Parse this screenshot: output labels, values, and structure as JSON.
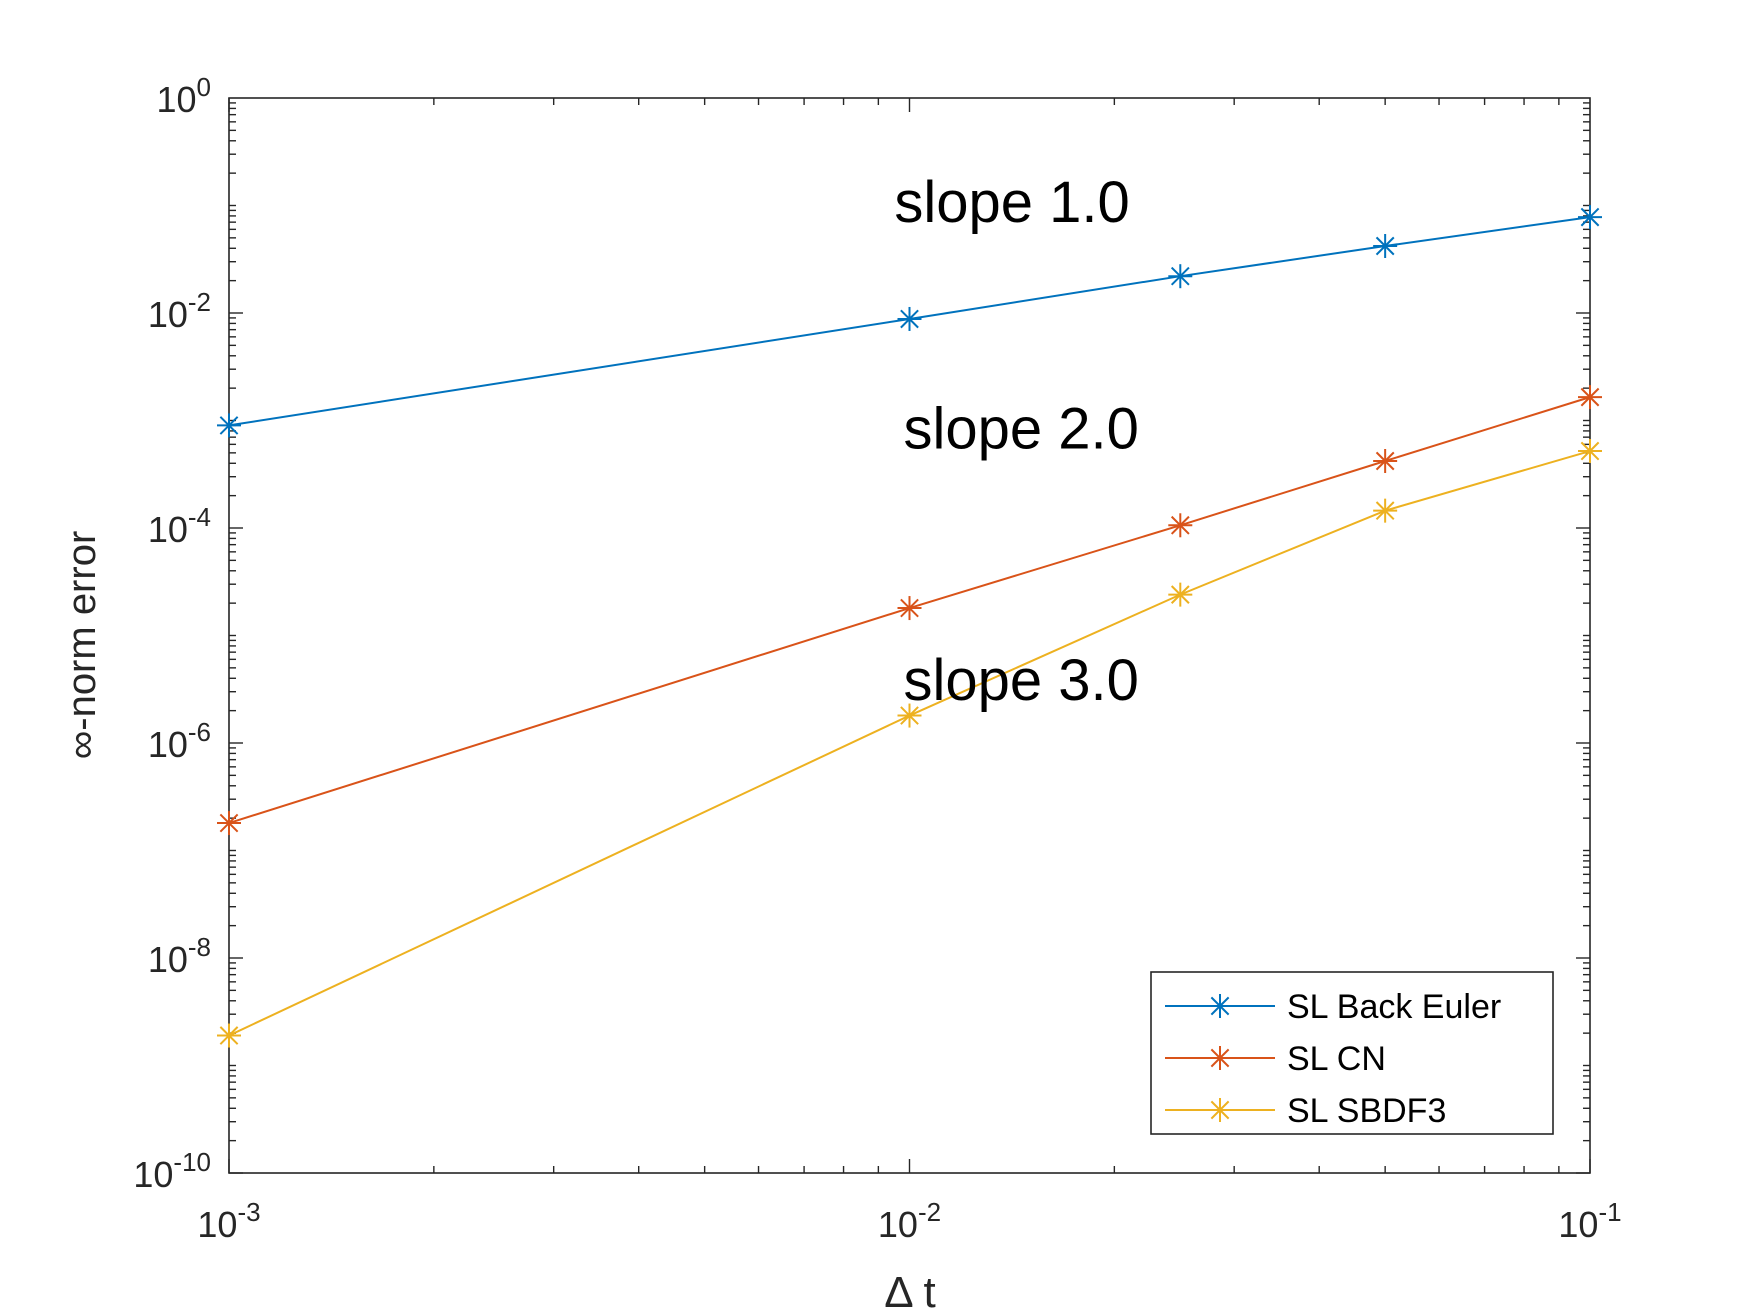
{
  "chart_data": {
    "type": "line",
    "title": "",
    "xlabel": "Δ t",
    "ylabel": "∞-norm error",
    "x_scale": "log",
    "y_scale": "log",
    "xlim": [
      0.001,
      0.1
    ],
    "ylim": [
      1e-10,
      1
    ],
    "grid": true,
    "legend_position": "bottom-right",
    "x_ticks": [
      {
        "value": 0.001,
        "base": "10",
        "exp": "-3"
      },
      {
        "value": 0.01,
        "base": "10",
        "exp": "-2"
      },
      {
        "value": 0.1,
        "base": "10",
        "exp": "-1"
      }
    ],
    "y_ticks": [
      {
        "value": 1,
        "base": "10",
        "exp": "0"
      },
      {
        "value": 0.01,
        "base": "10",
        "exp": "-2"
      },
      {
        "value": 0.0001,
        "base": "10",
        "exp": "-4"
      },
      {
        "value": 1e-06,
        "base": "10",
        "exp": "-6"
      },
      {
        "value": 1e-08,
        "base": "10",
        "exp": "-8"
      },
      {
        "value": 1e-10,
        "base": "10",
        "exp": "-10"
      }
    ],
    "series": [
      {
        "name": "SL Back Euler",
        "color": "#0072BD",
        "marker": "asterisk",
        "x": [
          0.001,
          0.01,
          0.025,
          0.05,
          0.1
        ],
        "y": [
          0.0009,
          0.0088,
          0.022,
          0.042,
          0.078
        ]
      },
      {
        "name": "SL CN",
        "color": "#D95319",
        "marker": "asterisk",
        "x": [
          0.001,
          0.01,
          0.025,
          0.05,
          0.1
        ],
        "y": [
          1.8e-07,
          1.8e-05,
          0.000106,
          0.00042,
          0.00165
        ]
      },
      {
        "name": "SL SBDF3",
        "color": "#EDB120",
        "marker": "asterisk",
        "x": [
          0.001,
          0.01,
          0.025,
          0.05,
          0.1
        ],
        "y": [
          1.9e-09,
          1.8e-06,
          2.4e-05,
          0.000145,
          0.00052
        ]
      }
    ],
    "annotations": [
      {
        "text": "slope 1.0",
        "x": 0.0095,
        "y": 0.07
      },
      {
        "text": "slope 2.0",
        "x": 0.0098,
        "y": 0.00055
      },
      {
        "text": "slope 3.0",
        "x": 0.0098,
        "y": 2.5e-06
      }
    ]
  }
}
